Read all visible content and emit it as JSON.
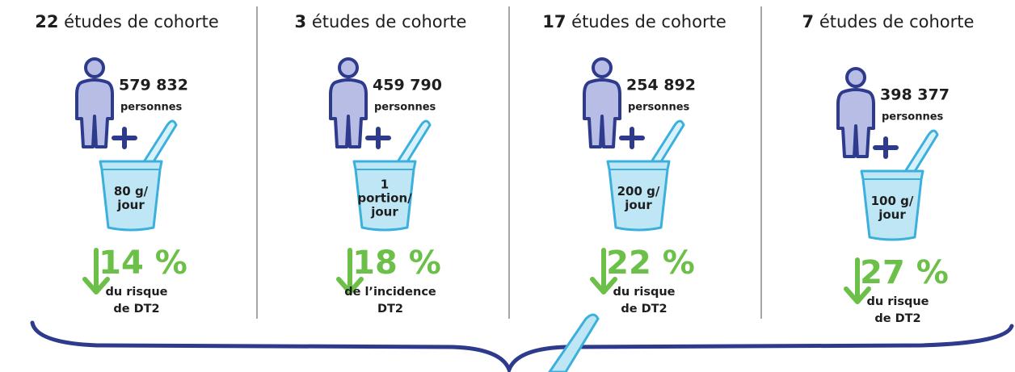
{
  "columns": [
    {
      "studies": "22",
      "studies_label": "études de cohorte",
      "people": "579 832",
      "people_label": "personnes",
      "dose": [
        "80 g/",
        "jour"
      ],
      "reduction": "14 %",
      "outcome": [
        "du risque",
        "de DT2"
      ]
    },
    {
      "studies": "3",
      "studies_label": "études de cohorte",
      "people": "459 790",
      "people_label": "personnes",
      "dose": [
        "1",
        "portion/",
        "jour"
      ],
      "reduction": "18 %",
      "outcome": [
        "de l’incidence",
        "DT2"
      ]
    },
    {
      "studies": "17",
      "studies_label": "études de cohorte",
      "people": "254 892",
      "people_label": "personnes",
      "dose": [
        "200 g/",
        "jour"
      ],
      "reduction": "22 %",
      "outcome": [
        "du risque",
        "de DT2"
      ]
    },
    {
      "studies": "7",
      "studies_label": "études de cohorte",
      "people": "398 377",
      "people_label": "personnes",
      "dose": [
        "100 g/",
        "jour"
      ],
      "reduction": "27 %",
      "outcome": [
        "du risque",
        "de DT2"
      ]
    }
  ]
}
